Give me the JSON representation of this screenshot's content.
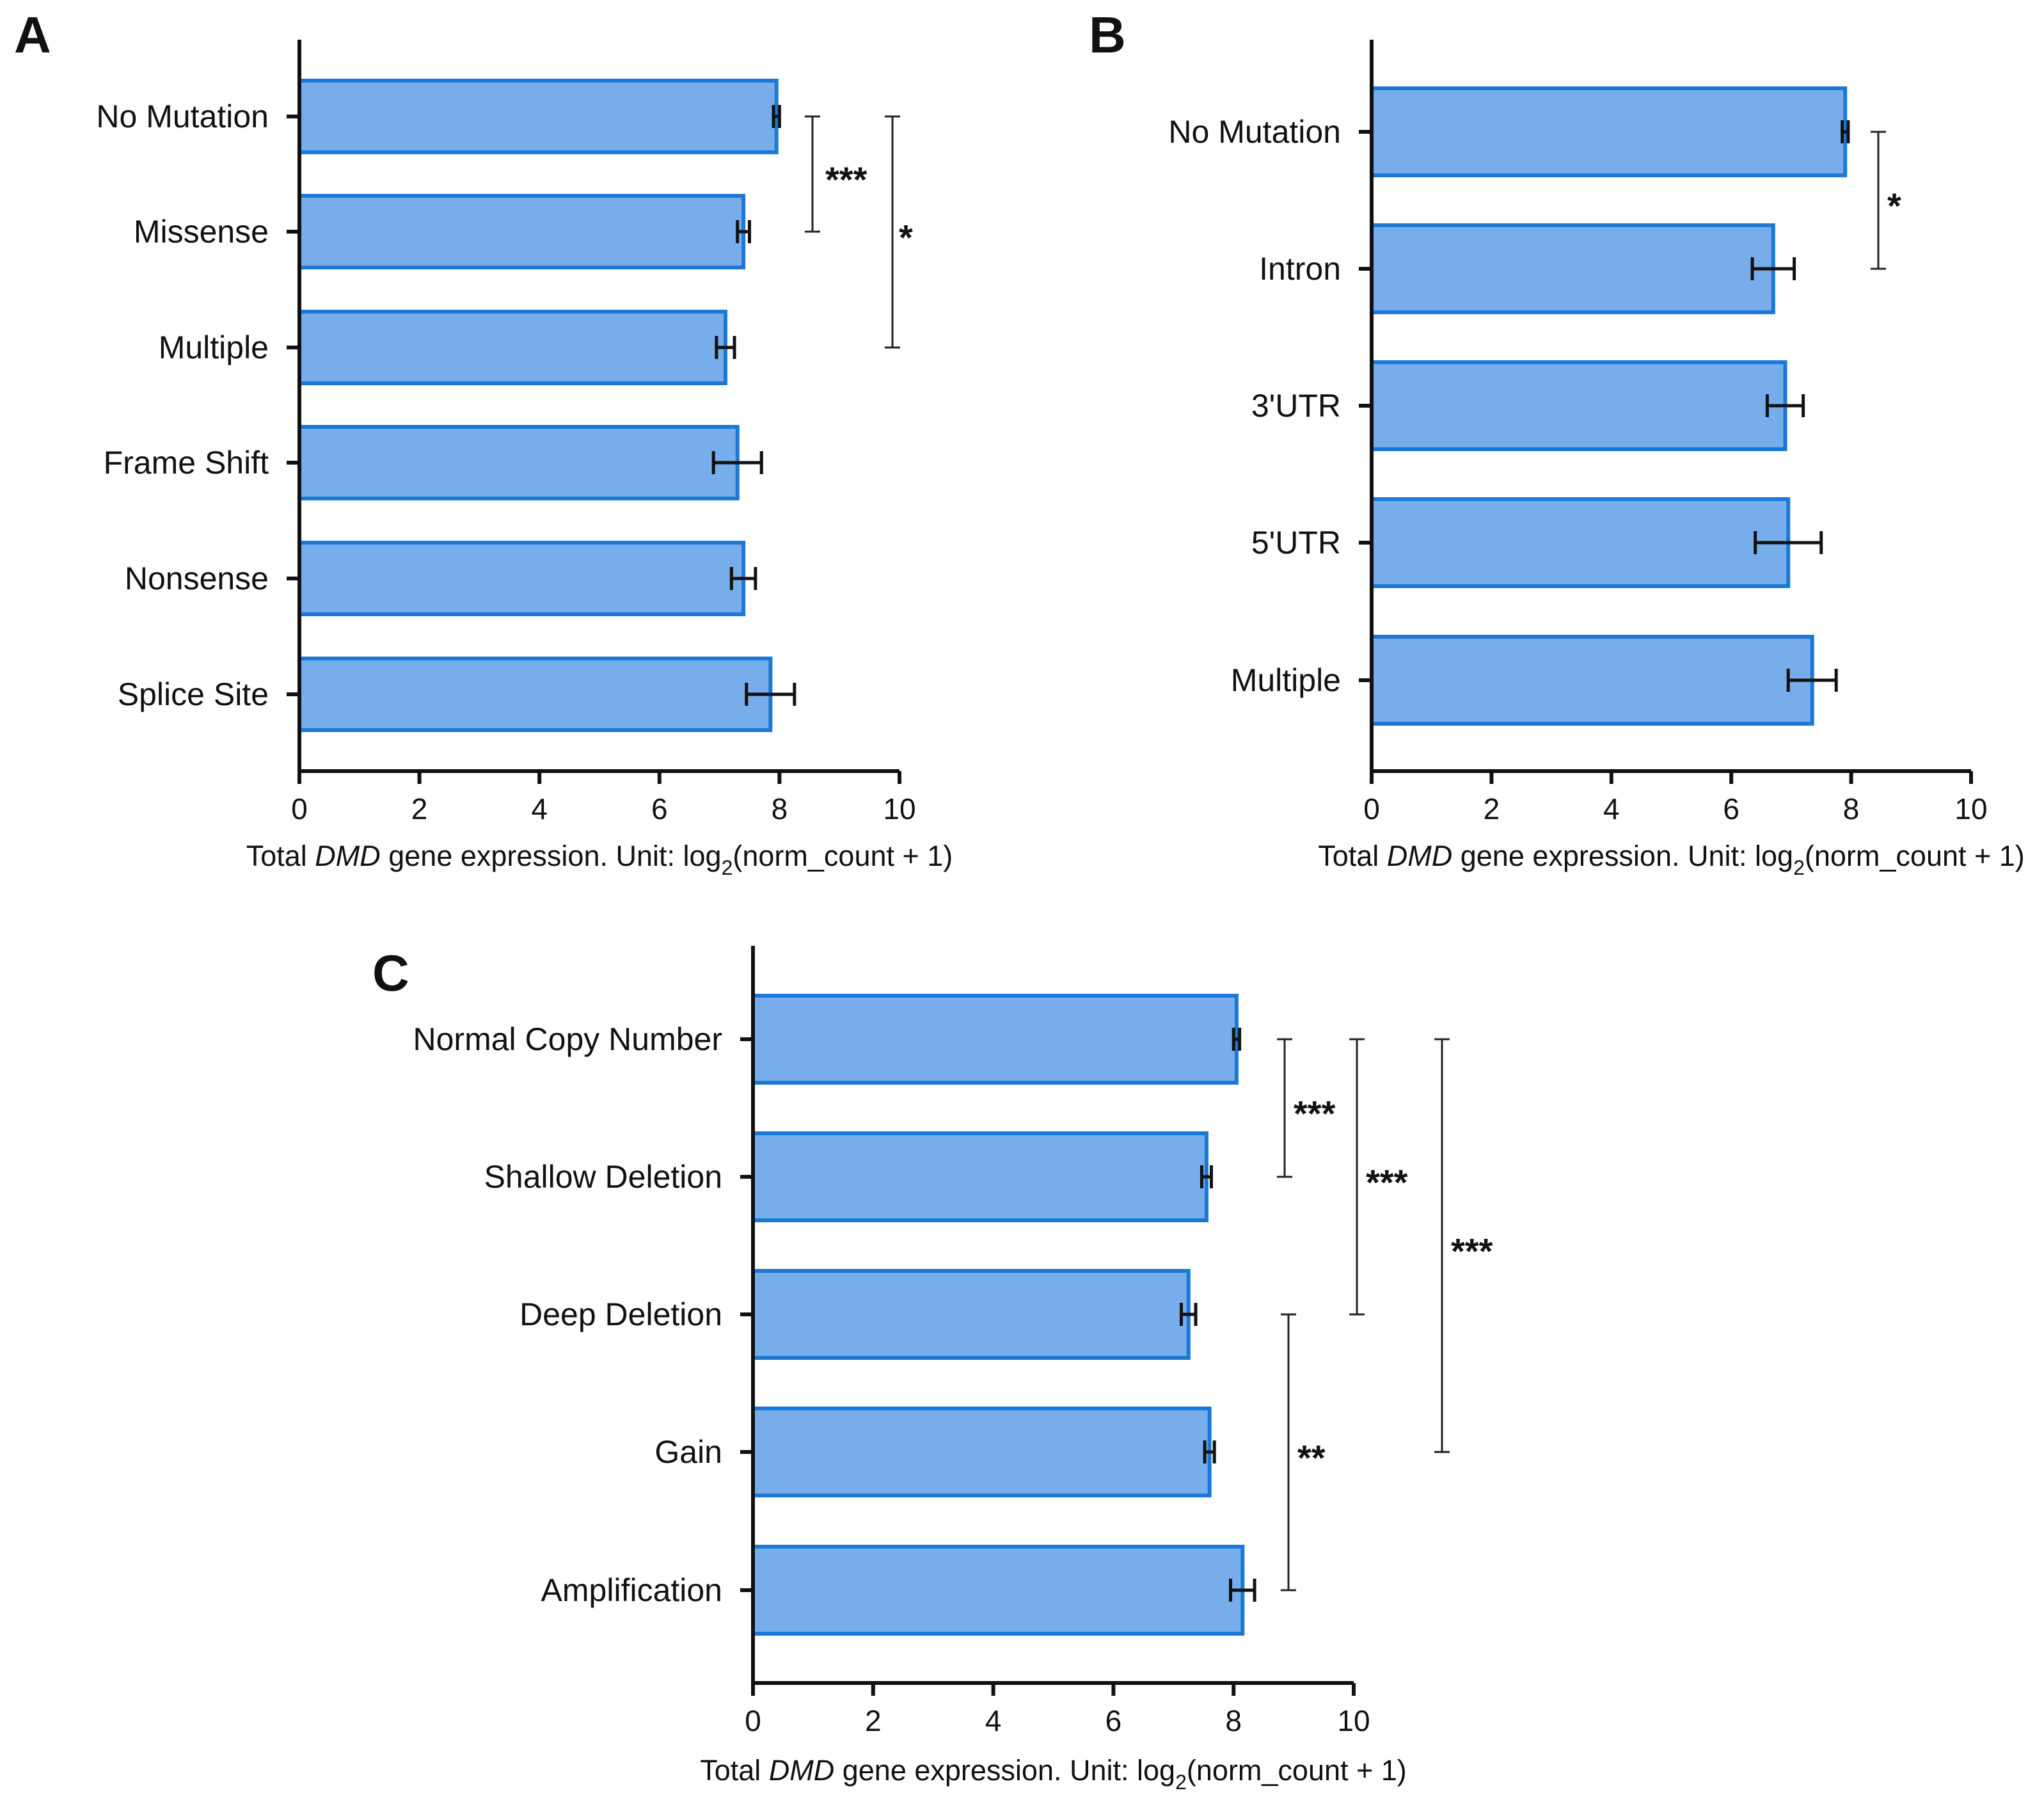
{
  "colors": {
    "bar_fill": "#78adec",
    "bar_stroke": "#1a78d6",
    "axis": "#111111"
  },
  "chart_data": [
    {
      "panel": "A",
      "type": "bar",
      "orientation": "horizontal",
      "categories": [
        "No Mutation",
        "Missense",
        "Multiple",
        "Frame Shift",
        "Nonsense",
        "Splice Site"
      ],
      "values": [
        7.95,
        7.4,
        7.1,
        7.3,
        7.4,
        7.85
      ],
      "errors": [
        0.05,
        0.1,
        0.15,
        0.4,
        0.2,
        0.4
      ],
      "xlim": [
        0,
        10
      ],
      "xticks": [
        "0",
        "2",
        "4",
        "6",
        "8",
        "10"
      ],
      "xlabel": {
        "prefix": "Total ",
        "gene": "DMD",
        "middle": " gene expression. Unit: log",
        "subscript": "2",
        "suffix": "(norm_count + 1)"
      },
      "significance": [
        {
          "from": "No Mutation",
          "to": "Missense",
          "label": "***"
        },
        {
          "from": "No Mutation",
          "to": "Multiple",
          "label": "*"
        }
      ]
    },
    {
      "panel": "B",
      "type": "bar",
      "orientation": "horizontal",
      "categories": [
        "No Mutation",
        "Intron",
        "3'UTR",
        "5'UTR",
        "Multiple"
      ],
      "values": [
        7.9,
        6.7,
        6.9,
        6.95,
        7.35
      ],
      "errors": [
        0.05,
        0.35,
        0.3,
        0.55,
        0.4
      ],
      "xlim": [
        0,
        10
      ],
      "xticks": [
        "0",
        "2",
        "4",
        "6",
        "8",
        "10"
      ],
      "xlabel": {
        "prefix": "Total ",
        "gene": "DMD",
        "middle": " gene expression. Unit: log",
        "subscript": "2",
        "suffix": "(norm_count + 1)"
      },
      "significance": [
        {
          "from": "No Mutation",
          "to": "Intron",
          "label": "*"
        }
      ]
    },
    {
      "panel": "C",
      "type": "bar",
      "orientation": "horizontal",
      "categories": [
        "Normal Copy Number",
        "Shallow Deletion",
        "Deep Deletion",
        "Gain",
        "Amplification"
      ],
      "values": [
        8.05,
        7.55,
        7.25,
        7.6,
        8.15
      ],
      "errors": [
        0.05,
        0.08,
        0.12,
        0.08,
        0.2
      ],
      "xlim": [
        0,
        10
      ],
      "xticks": [
        "0",
        "2",
        "4",
        "6",
        "8",
        "10"
      ],
      "xlabel": {
        "prefix": "Total ",
        "gene": "DMD",
        "middle": " gene expression. Unit: log",
        "subscript": "2",
        "suffix": "(norm_count + 1)"
      },
      "significance": [
        {
          "from": "Normal Copy Number",
          "to": "Shallow Deletion",
          "label": "***"
        },
        {
          "from": "Normal Copy Number",
          "to": "Deep Deletion",
          "label": "***"
        },
        {
          "from": "Normal Copy Number",
          "to": "Gain",
          "label": "***"
        },
        {
          "from": "Deep Deletion",
          "to": "Amplification",
          "label": "**"
        }
      ]
    }
  ]
}
